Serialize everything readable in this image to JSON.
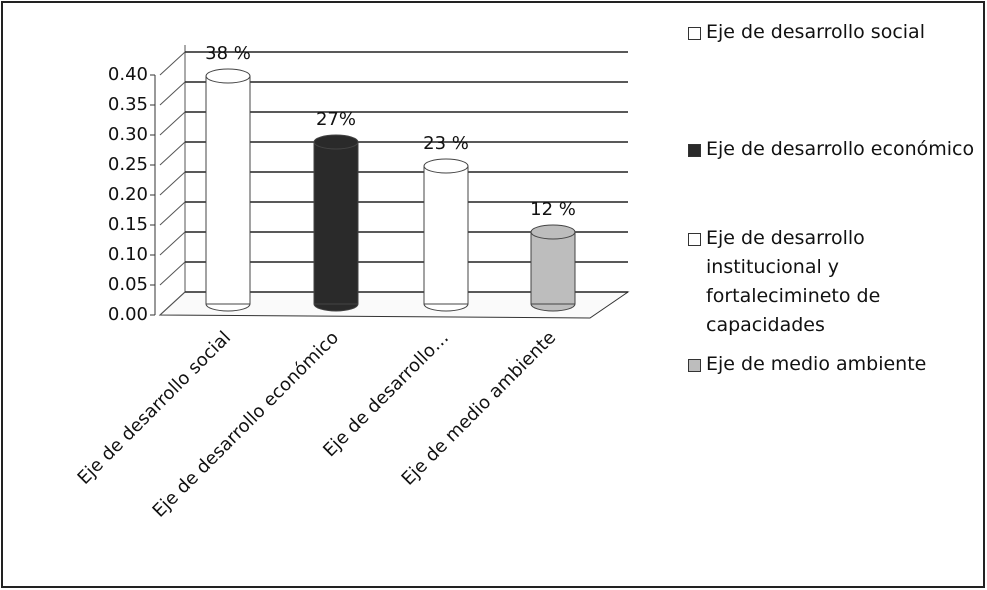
{
  "chart_data": {
    "type": "bar3d",
    "categories": [
      "Eje de desarrollo social",
      "Eje de desarrollo económico",
      "Eje de desarrollo…",
      "Eje de medio ambiente"
    ],
    "values": [
      0.38,
      0.27,
      0.23,
      0.12
    ],
    "value_labels": [
      "38 %",
      "27%",
      "23 %",
      "12 %"
    ],
    "colors": [
      "#ffffff",
      "#2a2a2a",
      "#ffffff",
      "#bdbdbd"
    ],
    "legend_labels": [
      "Eje de desarrollo social",
      "Eje de desarrollo económico",
      "Eje de desarrollo institucional y fortalecimineto de capacidades",
      "Eje de medio ambiente"
    ],
    "ylim": [
      0,
      0.4
    ],
    "yticks": [
      {
        "value": 0,
        "label": "0.00"
      },
      {
        "value": 0.05,
        "label": "0.05"
      },
      {
        "value": 0.1,
        "label": "0.10"
      },
      {
        "value": 0.15,
        "label": "0.15"
      },
      {
        "value": 0.2,
        "label": "0.20"
      },
      {
        "value": 0.25,
        "label": "0.25"
      },
      {
        "value": 0.3,
        "label": "0.30"
      },
      {
        "value": 0.35,
        "label": "0.35"
      },
      {
        "value": 0.4,
        "label": "0.40"
      }
    ],
    "grid": true
  }
}
